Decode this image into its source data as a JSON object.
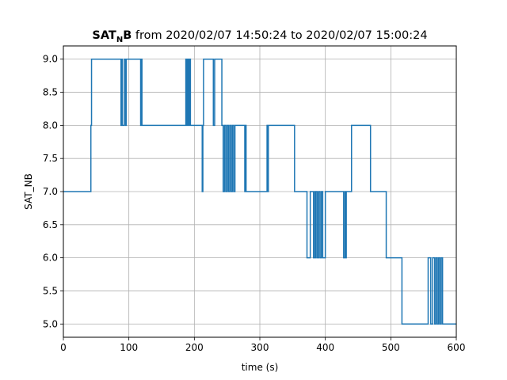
{
  "chart_data": {
    "type": "line",
    "title": {
      "main": "SAT",
      "sub": "N",
      "main_tail": "B",
      "rest": " from 2020/02/07 14:50:24 to 2020/02/07 15:00:24"
    },
    "xlabel": "time (s)",
    "ylabel": "SAT_NB",
    "xlim": [
      0,
      600
    ],
    "ylim": [
      4.8,
      9.2
    ],
    "xticks": [
      0,
      100,
      200,
      300,
      400,
      500,
      600
    ],
    "xtick_labels": [
      "0",
      "100",
      "200",
      "300",
      "400",
      "500",
      "600"
    ],
    "yticks": [
      5.0,
      5.5,
      6.0,
      6.5,
      7.0,
      7.5,
      8.0,
      8.5,
      9.0
    ],
    "ytick_labels": [
      "5.0",
      "5.5",
      "6.0",
      "6.5",
      "7.0",
      "7.5",
      "8.0",
      "8.5",
      "9.0"
    ],
    "grid": true,
    "step": "post",
    "line_color": "#1f77b4",
    "series": [
      {
        "x": [
          0,
          42,
          43,
          88,
          89,
          90,
          93,
          95,
          96,
          118,
          119,
          120,
          187,
          188,
          189,
          190,
          191,
          192,
          193,
          194,
          212,
          213,
          214,
          229,
          231,
          242,
          244,
          246,
          248,
          250,
          252,
          254,
          256,
          258,
          260,
          262,
          277,
          278,
          279,
          311,
          312,
          313,
          353,
          372,
          377,
          382,
          384,
          385,
          386,
          388,
          390,
          392,
          394,
          396,
          400,
          428,
          430,
          431,
          432,
          440,
          441,
          469,
          493,
          517,
          557,
          561,
          564,
          567,
          569,
          571,
          573,
          575,
          577,
          579,
          600
        ],
        "y": [
          7,
          8,
          9,
          8,
          9,
          8,
          9,
          8,
          9,
          8,
          9,
          8,
          9,
          8,
          9,
          8,
          9,
          8,
          9,
          8,
          7,
          8,
          9,
          8,
          9,
          8,
          7,
          8,
          7,
          8,
          7,
          8,
          7,
          8,
          7,
          8,
          7,
          8,
          7,
          8,
          7,
          8,
          7,
          6,
          7,
          6,
          7,
          6,
          7,
          6,
          7,
          6,
          7,
          6,
          7,
          6,
          7,
          6,
          7,
          8,
          8,
          7,
          6,
          5,
          6,
          5,
          6,
          5,
          6,
          5,
          6,
          5,
          6,
          5,
          5
        ]
      }
    ]
  }
}
